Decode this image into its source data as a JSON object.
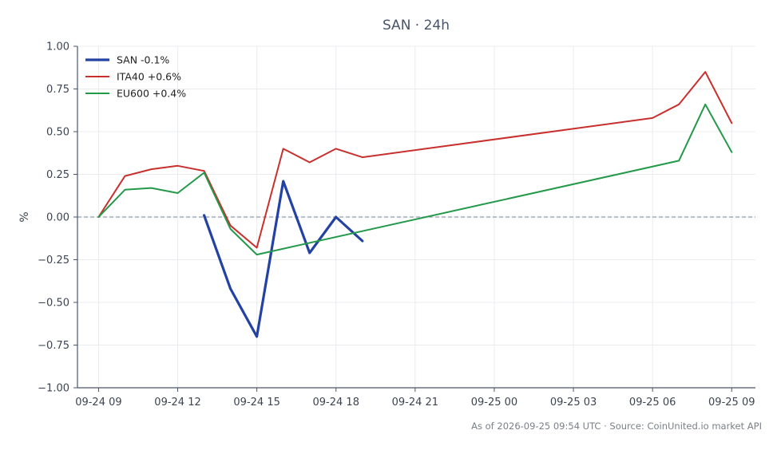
{
  "chart_data": {
    "type": "line",
    "title": "SAN · 24h",
    "xlabel": "",
    "ylabel": "%",
    "ylim": [
      -1.0,
      1.0
    ],
    "yticks": [
      "1.00",
      "0.75",
      "0.50",
      "0.25",
      "0.00",
      "−0.25",
      "−0.50",
      "−0.75",
      "−1.00"
    ],
    "ytick_values": [
      1.0,
      0.75,
      0.5,
      0.25,
      0.0,
      -0.25,
      -0.5,
      -0.75,
      -1.0
    ],
    "xlim": [
      -0.8,
      24.9
    ],
    "xticks": [
      "09-24 09",
      "09-24 12",
      "09-24 15",
      "09-24 18",
      "09-24 21",
      "09-25 00",
      "09-25 03",
      "09-25 06",
      "09-25 09"
    ],
    "xtick_values": [
      0,
      3,
      6,
      9,
      12,
      15,
      18,
      21,
      24
    ],
    "grid": true,
    "zero_line": true,
    "legend_position": "top-left",
    "series": [
      {
        "name": "SAN -0.1%",
        "color": "#2342a3",
        "width": 3.2,
        "x": [
          4,
          5,
          6,
          7,
          8,
          9,
          10
        ],
        "y": [
          0.01,
          -0.42,
          -0.7,
          0.21,
          -0.21,
          0.0,
          -0.14
        ]
      },
      {
        "name": "ITA40 +0.6%",
        "color": "#c8302e",
        "width": 2,
        "x": [
          0,
          1,
          2,
          3,
          4,
          5,
          6,
          7,
          8,
          9,
          10,
          21,
          22,
          23,
          24
        ],
        "y": [
          0.0,
          0.24,
          0.28,
          0.3,
          0.27,
          -0.05,
          -0.18,
          0.4,
          0.32,
          0.4,
          0.35,
          0.58,
          0.66,
          0.85,
          0.55
        ]
      },
      {
        "name": "EU600 +0.4%",
        "color": "#23994a",
        "width": 2,
        "x": [
          0,
          1,
          2,
          3,
          4,
          5,
          6,
          22,
          23,
          24
        ],
        "y": [
          0.0,
          0.16,
          0.17,
          0.14,
          0.26,
          -0.07,
          -0.22,
          0.33,
          0.66,
          0.38
        ]
      }
    ],
    "footer": "As of 2026-09-25 09:54 UTC · Source: CoinUnited.io market API"
  }
}
